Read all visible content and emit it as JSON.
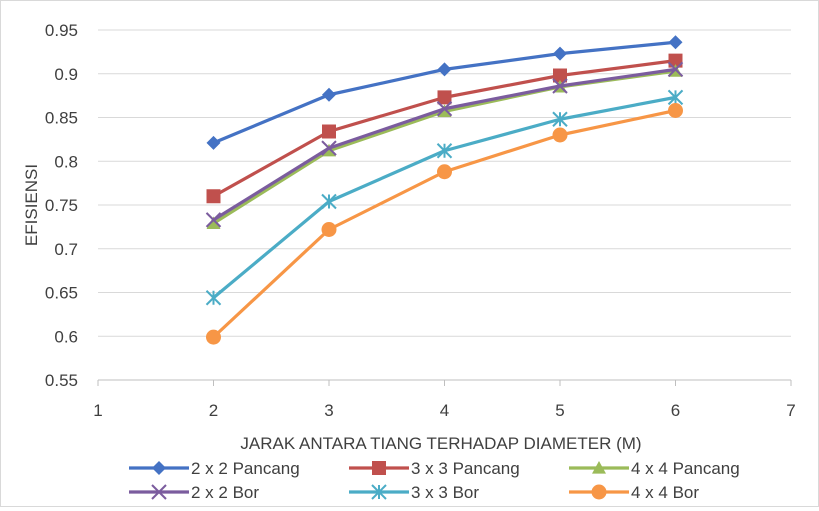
{
  "chart_data": {
    "type": "line",
    "title": "",
    "xlabel": "JARAK ANTARA TIANG TERHADAP DIAMETER (M)",
    "ylabel": "EFISIENSI",
    "xlim": [
      1,
      7
    ],
    "ylim": [
      0.55,
      0.95
    ],
    "x_ticks": [
      "1",
      "2",
      "3",
      "4",
      "5",
      "6",
      "7"
    ],
    "y_ticks": [
      "0.55",
      "0.6",
      "0.65",
      "0.7",
      "0.75",
      "0.8",
      "0.85",
      "0.9",
      "0.95"
    ],
    "grid": true,
    "legend_position": "bottom",
    "x": [
      2,
      3,
      4,
      5,
      6
    ],
    "series": [
      {
        "name": "2 x 2 Pancang",
        "color": "#4472C4",
        "marker": "diamond",
        "values": [
          0.821,
          0.876,
          0.905,
          0.923,
          0.936
        ]
      },
      {
        "name": "3 x 3 Pancang",
        "color": "#C0504D",
        "marker": "square",
        "values": [
          0.76,
          0.834,
          0.873,
          0.898,
          0.915
        ]
      },
      {
        "name": "4 x 4 Pancang",
        "color": "#9BBB59",
        "marker": "triangle",
        "values": [
          0.729,
          0.812,
          0.857,
          0.885,
          0.903
        ]
      },
      {
        "name": "2 x 2 Bor",
        "color": "#7B5C9E",
        "marker": "x",
        "values": [
          0.733,
          0.815,
          0.86,
          0.886,
          0.905
        ]
      },
      {
        "name": "3 x 3 Bor",
        "color": "#4BACC6",
        "marker": "star",
        "values": [
          0.644,
          0.754,
          0.812,
          0.848,
          0.873
        ]
      },
      {
        "name": "4 x 4 Bor",
        "color": "#F79646",
        "marker": "circle",
        "values": [
          0.599,
          0.722,
          0.788,
          0.83,
          0.858
        ]
      }
    ]
  }
}
